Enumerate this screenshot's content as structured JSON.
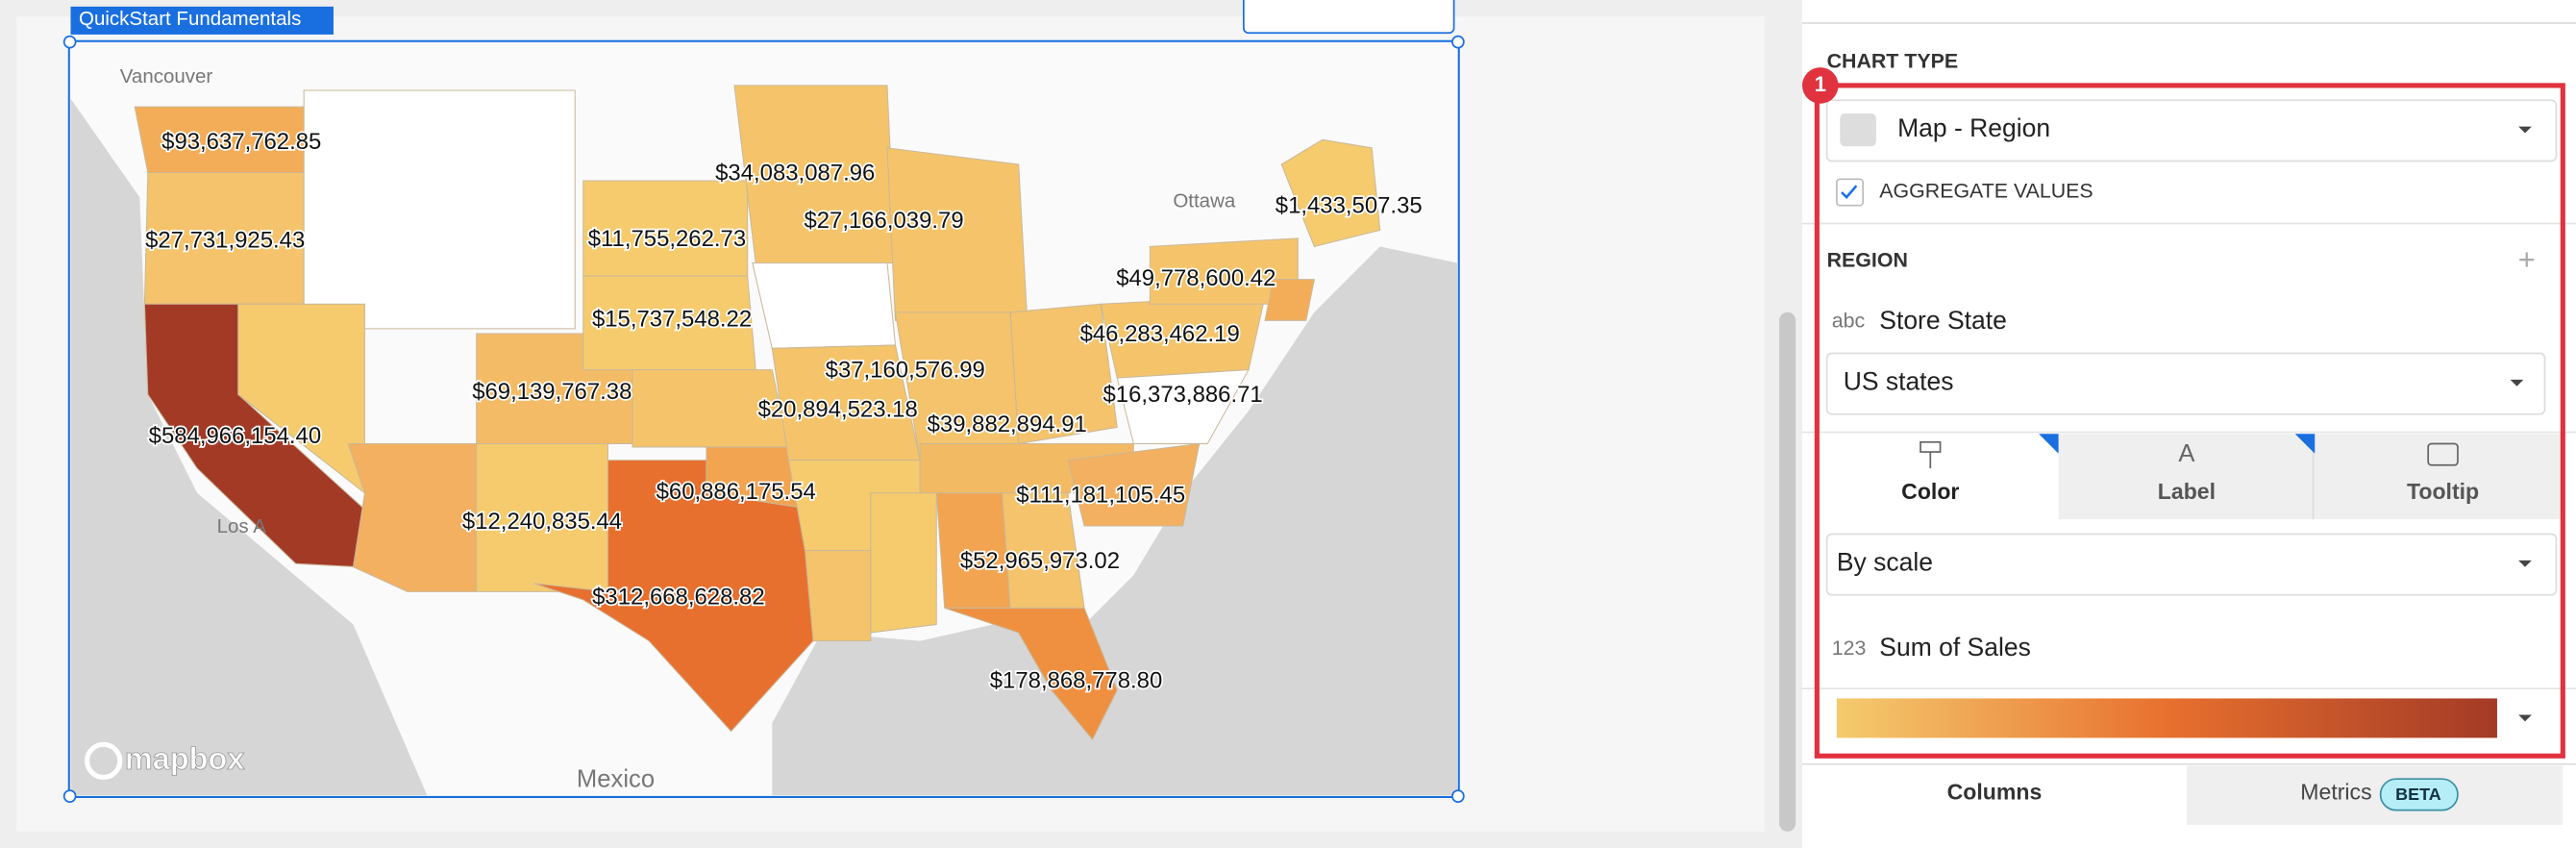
{
  "canvas": {
    "tag": "QuickStart Fundamentals"
  },
  "map": {
    "places": [
      "Vancouver",
      "Ottawa",
      "Los A",
      "Mexico"
    ],
    "attribution": "mapbox",
    "values": [
      "$93,637,762.85",
      "$27,731,925.43",
      "$34,083,087.96",
      "$27,166,039.79",
      "$11,755,262.73",
      "$1,433,507.35",
      "$49,778,600.42",
      "$15,737,548.22",
      "$46,283,462.19",
      "$37,160,576.99",
      "$69,139,767.38",
      "$16,373,886.71",
      "$20,894,523.18",
      "$39,882,894.91",
      "$584,966,154.40",
      "$60,886,175.54",
      "$111,181,105.45",
      "$12,240,835.44",
      "$52,965,973.02",
      "$312,668,628.82",
      "$178,868,778.80"
    ]
  },
  "panel": {
    "chart_type_heading": "CHART TYPE",
    "chart_type": "Map - Region",
    "aggregate": "AGGREGATE VALUES",
    "region_heading": "REGION",
    "add": "+",
    "region_field_type": "abc",
    "region_field": "Store State",
    "region_kind": "US states",
    "tabs": [
      "Color",
      "Label",
      "Tooltip"
    ],
    "color_mode": "By scale",
    "color_field_type": "123",
    "color_field": "Sum of Sales",
    "badge": "1",
    "bottom_tabs": [
      "Columns",
      "Metrics"
    ],
    "beta": "BETA"
  }
}
